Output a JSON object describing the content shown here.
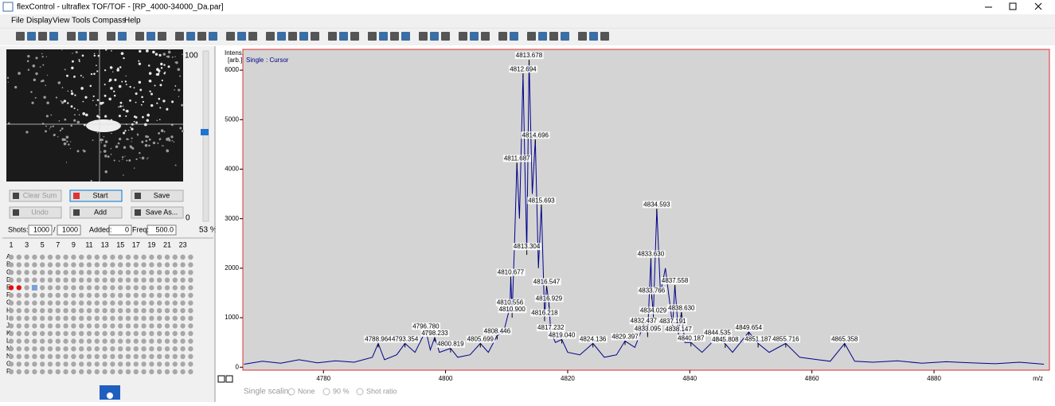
{
  "window": {
    "title": "flexControl - ultraflex TOF/TOF - [RP_4000-34000_Da.par]"
  },
  "menu": [
    "File",
    "Display",
    "View",
    "Tools",
    "Compass",
    "Help"
  ],
  "slider": {
    "max_label": "100",
    "min_label": "0",
    "value_label": "53 %"
  },
  "buttons": [
    "Clear Sum",
    "Start",
    "Save",
    "Undo",
    "Add",
    "Save As..."
  ],
  "shots": {
    "label": "Shots:",
    "value": "1000",
    "separator": "/",
    "total": "1000",
    "added_label": "Added:",
    "added": "0",
    "freq_label": "Freq:",
    "freq": "500.0"
  },
  "plate": {
    "columns": [
      "1",
      "3",
      "5",
      "7",
      "9",
      "11",
      "13",
      "15",
      "17",
      "19",
      "21",
      "23"
    ],
    "rows": [
      "A",
      "B",
      "C",
      "D",
      "E",
      "F",
      "G",
      "H",
      "I",
      "J",
      "K",
      "L",
      "M",
      "N",
      "O",
      "P"
    ]
  },
  "scaling": {
    "label": "Single scaling:",
    "options": [
      "None",
      "90 %",
      "Shot ratio"
    ]
  },
  "chart_data": {
    "type": "line",
    "y_label": [
      "Intens.",
      "[arb.]"
    ],
    "mode": "Single",
    "cursor": ": Cursor",
    "x_label": "m/z",
    "xlim": [
      4766.8,
      4898.9
    ],
    "ylim": [
      -60,
      6420
    ],
    "xticks": [
      4780,
      4800,
      4820,
      4840,
      4860,
      4880
    ],
    "yticks": [
      0,
      1000,
      2000,
      3000,
      4000,
      5000,
      6000
    ],
    "x": [
      4767,
      4770,
      4773,
      4776,
      4779,
      4782,
      4785,
      4788,
      4788.964,
      4790,
      4792,
      4793.354,
      4795,
      4796.78,
      4797.5,
      4798.233,
      4799,
      4800.819,
      4802,
      4804,
      4805.699,
      4807,
      4808.446,
      4809.5,
      4810.556,
      4810.677,
      4810.9,
      4811.3,
      4811.687,
      4812.1,
      4812.694,
      4813.0,
      4813.304,
      4813.678,
      4814.2,
      4814.696,
      4815.2,
      4815.693,
      4816.218,
      4816.547,
      4816.929,
      4817.232,
      4818,
      4819.04,
      4820,
      4822,
      4824.136,
      4826,
      4828,
      4829.397,
      4831,
      4832.437,
      4833.095,
      4833.63,
      4833.766,
      4834.029,
      4834.593,
      4835.2,
      4836,
      4837.191,
      4837.558,
      4838.147,
      4838.63,
      4839.2,
      4840.187,
      4842,
      4844.535,
      4845.808,
      4847,
      4849.654,
      4851.187,
      4853,
      4855.716,
      4858,
      4861,
      4863,
      4865.358,
      4867,
      4870,
      4874,
      4878,
      4882,
      4886,
      4890,
      4894,
      4898
    ],
    "series": [
      {
        "name": "Single",
        "color": "#00008b",
        "values": [
          60,
          120,
          80,
          150,
          90,
          130,
          100,
          200,
          480,
          150,
          250,
          480,
          300,
          740,
          350,
          600,
          300,
          380,
          200,
          250,
          480,
          300,
          640,
          700,
          1220,
          1830,
          1080,
          2500,
          4130,
          3000,
          5935,
          4000,
          2350,
          6210,
          3500,
          4600,
          2000,
          3280,
          1010,
          1640,
          1300,
          710,
          500,
          560,
          300,
          250,
          480,
          200,
          250,
          530,
          400,
          850,
          690,
          2200,
          1460,
          1060,
          3200,
          1500,
          2000,
          840,
          1660,
          680,
          1110,
          500,
          500,
          300,
          610,
          470,
          300,
          710,
          480,
          300,
          480,
          200,
          150,
          120,
          480,
          120,
          100,
          130,
          80,
          110,
          90,
          70,
          100,
          60
        ]
      }
    ],
    "peaks": [
      {
        "mz": 4813.678,
        "intensity": 6210
      },
      {
        "mz": 4812.694,
        "intensity": 5935
      },
      {
        "mz": 4814.696,
        "intensity": 4600
      },
      {
        "mz": 4811.687,
        "intensity": 4130
      },
      {
        "mz": 4815.693,
        "intensity": 3280
      },
      {
        "mz": 4834.593,
        "intensity": 3200
      },
      {
        "mz": 4813.304,
        "intensity": 2350
      },
      {
        "mz": 4833.63,
        "intensity": 2200
      },
      {
        "mz": 4810.677,
        "intensity": 1830
      },
      {
        "mz": 4837.558,
        "intensity": 1660
      },
      {
        "mz": 4816.547,
        "intensity": 1640
      },
      {
        "mz": 4833.766,
        "intensity": 1460
      },
      {
        "mz": 4816.929,
        "intensity": 1300
      },
      {
        "mz": 4810.556,
        "intensity": 1220
      },
      {
        "mz": 4838.63,
        "intensity": 1110
      },
      {
        "mz": 4810.9,
        "intensity": 1080
      },
      {
        "mz": 4834.029,
        "intensity": 1060
      },
      {
        "mz": 4816.218,
        "intensity": 1010
      },
      {
        "mz": 4832.437,
        "intensity": 850
      },
      {
        "mz": 4837.191,
        "intensity": 840
      },
      {
        "mz": 4796.78,
        "intensity": 740
      },
      {
        "mz": 4817.232,
        "intensity": 710
      },
      {
        "mz": 4849.654,
        "intensity": 710
      },
      {
        "mz": 4833.095,
        "intensity": 690
      },
      {
        "mz": 4838.147,
        "intensity": 680
      },
      {
        "mz": 4808.446,
        "intensity": 640
      },
      {
        "mz": 4844.535,
        "intensity": 610
      },
      {
        "mz": 4798.233,
        "intensity": 600
      },
      {
        "mz": 4819.04,
        "intensity": 560
      },
      {
        "mz": 4829.397,
        "intensity": 530
      },
      {
        "mz": 4840.187,
        "intensity": 500
      },
      {
        "mz": 4788.964,
        "intensity": 480
      },
      {
        "mz": 4793.354,
        "intensity": 480
      },
      {
        "mz": 4805.699,
        "intensity": 480
      },
      {
        "mz": 4824.136,
        "intensity": 480
      },
      {
        "mz": 4851.187,
        "intensity": 480
      },
      {
        "mz": 4855.716,
        "intensity": 480
      },
      {
        "mz": 4865.358,
        "intensity": 480
      },
      {
        "mz": 4845.808,
        "intensity": 470
      },
      {
        "mz": 4800.819,
        "intensity": 380
      }
    ],
    "peak_label_format": {
      "decimals": 3
    },
    "background": "#d4d4d4",
    "border": "#e03030"
  }
}
